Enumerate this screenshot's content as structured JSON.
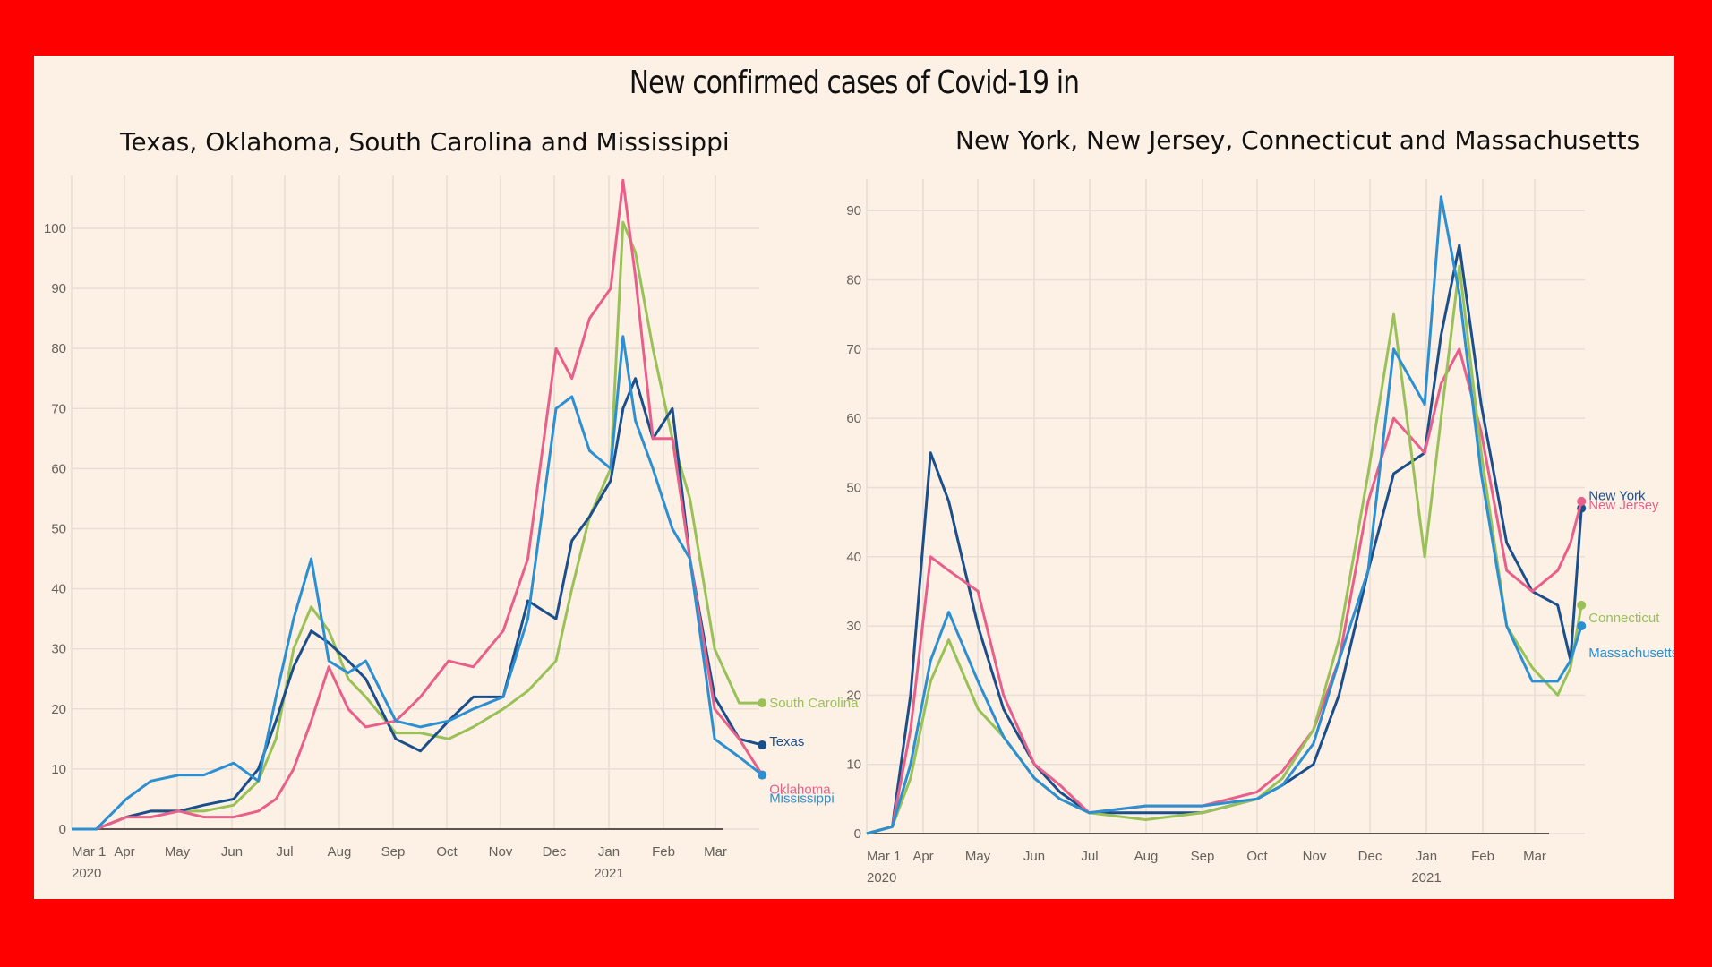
{
  "title": "New confirmed cases of Covid-19 in",
  "colors": {
    "frame": "#ff0000",
    "panel": "#fdf1e6",
    "navy": "#1b4f8c",
    "pink": "#e8608a",
    "green": "#99c157",
    "blue": "#2b8fd1",
    "grid": "#e7ded4",
    "tick": "#66605a"
  },
  "chart_data": [
    {
      "type": "line",
      "title": "Texas, Oklahoma, South Carolina and Mississippi",
      "xlabel": "",
      "ylabel": "",
      "x_tick_labels": [
        "Mar 1\n2020",
        "Apr",
        "May",
        "Jun",
        "Jul",
        "Aug",
        "Sep",
        "Oct",
        "Nov",
        "Dec",
        "Jan\n2021",
        "Feb",
        "Mar"
      ],
      "x_ticks_month_index": [
        0,
        1,
        2,
        3,
        4,
        5,
        6,
        7,
        8,
        9,
        10,
        11,
        12
      ],
      "xlim": [
        "2020-03-01",
        "2021-03-28"
      ],
      "ylim": [
        0,
        107
      ],
      "y_ticks": [
        0,
        10,
        20,
        30,
        40,
        50,
        60,
        70,
        80,
        90,
        100
      ],
      "grid": true,
      "legend": "end-of-line labels, right",
      "series": [
        {
          "name": "South Carolina",
          "color": "#99c157",
          "x": [
            "2020-03-01",
            "2020-03-15",
            "2020-04-01",
            "2020-04-15",
            "2020-05-01",
            "2020-05-15",
            "2020-06-01",
            "2020-06-15",
            "2020-06-25",
            "2020-07-05",
            "2020-07-15",
            "2020-07-25",
            "2020-08-05",
            "2020-08-15",
            "2020-09-01",
            "2020-09-15",
            "2020-10-01",
            "2020-10-15",
            "2020-11-01",
            "2020-11-15",
            "2020-12-01",
            "2020-12-10",
            "2020-12-20",
            "2021-01-01",
            "2021-01-08",
            "2021-01-15",
            "2021-01-25",
            "2021-02-05",
            "2021-02-15",
            "2021-03-01",
            "2021-03-15",
            "2021-03-28"
          ],
          "values": [
            0,
            0,
            2,
            3,
            3,
            3,
            4,
            8,
            15,
            30,
            37,
            33,
            25,
            22,
            16,
            16,
            15,
            17,
            20,
            23,
            28,
            40,
            52,
            60,
            101,
            96,
            80,
            65,
            55,
            30,
            21,
            21
          ]
        },
        {
          "name": "Texas",
          "color": "#1b4f8c",
          "x": [
            "2020-03-01",
            "2020-03-15",
            "2020-04-01",
            "2020-04-15",
            "2020-05-01",
            "2020-05-15",
            "2020-06-01",
            "2020-06-15",
            "2020-06-25",
            "2020-07-05",
            "2020-07-15",
            "2020-07-25",
            "2020-08-05",
            "2020-08-15",
            "2020-09-01",
            "2020-09-15",
            "2020-10-01",
            "2020-10-15",
            "2020-11-01",
            "2020-11-15",
            "2020-12-01",
            "2020-12-10",
            "2020-12-20",
            "2021-01-01",
            "2021-01-08",
            "2021-01-15",
            "2021-01-25",
            "2021-02-05",
            "2021-02-15",
            "2021-03-01",
            "2021-03-15",
            "2021-03-28"
          ],
          "values": [
            0,
            0,
            2,
            3,
            3,
            4,
            5,
            10,
            18,
            27,
            33,
            31,
            28,
            25,
            15,
            13,
            18,
            22,
            22,
            38,
            35,
            48,
            52,
            58,
            70,
            75,
            65,
            70,
            45,
            22,
            15,
            14
          ]
        },
        {
          "name": "Oklahoma",
          "color": "#e8608a",
          "x": [
            "2020-03-01",
            "2020-03-15",
            "2020-04-01",
            "2020-04-15",
            "2020-05-01",
            "2020-05-15",
            "2020-06-01",
            "2020-06-15",
            "2020-06-25",
            "2020-07-05",
            "2020-07-15",
            "2020-07-25",
            "2020-08-05",
            "2020-08-15",
            "2020-09-01",
            "2020-09-15",
            "2020-10-01",
            "2020-10-15",
            "2020-11-01",
            "2020-11-15",
            "2020-12-01",
            "2020-12-10",
            "2020-12-20",
            "2021-01-01",
            "2021-01-08",
            "2021-01-15",
            "2021-01-25",
            "2021-02-05",
            "2021-02-15",
            "2021-03-01",
            "2021-03-15",
            "2021-03-28"
          ],
          "values": [
            0,
            0,
            2,
            2,
            3,
            2,
            2,
            3,
            5,
            10,
            18,
            27,
            20,
            17,
            18,
            22,
            28,
            27,
            33,
            45,
            80,
            75,
            85,
            90,
            108,
            92,
            65,
            65,
            45,
            20,
            15,
            9
          ]
        },
        {
          "name": "Mississippi",
          "color": "#2b8fd1",
          "x": [
            "2020-03-01",
            "2020-03-15",
            "2020-04-01",
            "2020-04-15",
            "2020-05-01",
            "2020-05-15",
            "2020-06-01",
            "2020-06-15",
            "2020-06-25",
            "2020-07-05",
            "2020-07-15",
            "2020-07-25",
            "2020-08-05",
            "2020-08-15",
            "2020-09-01",
            "2020-09-15",
            "2020-10-01",
            "2020-10-15",
            "2020-11-01",
            "2020-11-15",
            "2020-12-01",
            "2020-12-10",
            "2020-12-20",
            "2021-01-01",
            "2021-01-08",
            "2021-01-15",
            "2021-01-25",
            "2021-02-05",
            "2021-02-15",
            "2021-03-01",
            "2021-03-15",
            "2021-03-28"
          ],
          "values": [
            0,
            0,
            5,
            8,
            9,
            9,
            11,
            8,
            22,
            35,
            45,
            28,
            26,
            28,
            18,
            17,
            18,
            20,
            22,
            35,
            70,
            72,
            63,
            60,
            82,
            68,
            60,
            50,
            45,
            15,
            12,
            9
          ]
        }
      ]
    },
    {
      "type": "line",
      "title": "New York, New Jersey, Connecticut and Massachusetts",
      "xlabel": "",
      "ylabel": "",
      "x_tick_labels": [
        "Mar 1\n2020",
        "Apr",
        "May",
        "Jun",
        "Jul",
        "Aug",
        "Sep",
        "Oct",
        "Nov",
        "Dec",
        "Jan\n2021",
        "Feb",
        "Mar"
      ],
      "x_ticks_month_index": [
        0,
        1,
        2,
        3,
        4,
        5,
        6,
        7,
        8,
        9,
        10,
        11,
        12
      ],
      "xlim": [
        "2020-03-01",
        "2021-03-28"
      ],
      "ylim": [
        0,
        93
      ],
      "y_ticks": [
        0,
        10,
        20,
        30,
        40,
        50,
        60,
        70,
        80,
        90
      ],
      "grid": true,
      "legend": "end-of-line labels, right",
      "series": [
        {
          "name": "New York",
          "color": "#1b4f8c",
          "x": [
            "2020-03-01",
            "2020-03-15",
            "2020-03-25",
            "2020-04-05",
            "2020-04-15",
            "2020-05-01",
            "2020-05-15",
            "2020-06-01",
            "2020-06-15",
            "2020-07-01",
            "2020-08-01",
            "2020-09-01",
            "2020-10-01",
            "2020-10-15",
            "2020-11-01",
            "2020-11-15",
            "2020-12-01",
            "2020-12-15",
            "2021-01-01",
            "2021-01-10",
            "2021-01-20",
            "2021-02-01",
            "2021-02-15",
            "2021-03-01",
            "2021-03-15",
            "2021-03-22",
            "2021-03-28"
          ],
          "values": [
            0,
            1,
            20,
            55,
            48,
            30,
            18,
            10,
            6,
            3,
            3,
            3,
            5,
            7,
            10,
            20,
            38,
            52,
            55,
            72,
            85,
            62,
            42,
            35,
            33,
            25,
            47
          ]
        },
        {
          "name": "New Jersey",
          "color": "#e8608a",
          "x": [
            "2020-03-01",
            "2020-03-15",
            "2020-03-25",
            "2020-04-05",
            "2020-04-15",
            "2020-05-01",
            "2020-05-15",
            "2020-06-01",
            "2020-06-15",
            "2020-07-01",
            "2020-08-01",
            "2020-09-01",
            "2020-10-01",
            "2020-10-15",
            "2020-11-01",
            "2020-11-15",
            "2020-12-01",
            "2020-12-15",
            "2021-01-01",
            "2021-01-10",
            "2021-01-20",
            "2021-02-01",
            "2021-02-15",
            "2021-03-01",
            "2021-03-15",
            "2021-03-22",
            "2021-03-28"
          ],
          "values": [
            0,
            1,
            15,
            40,
            38,
            35,
            20,
            10,
            7,
            3,
            4,
            4,
            6,
            9,
            15,
            25,
            48,
            60,
            55,
            65,
            70,
            58,
            38,
            35,
            38,
            42,
            48
          ]
        },
        {
          "name": "Connecticut",
          "color": "#99c157",
          "x": [
            "2020-03-01",
            "2020-03-15",
            "2020-03-25",
            "2020-04-05",
            "2020-04-15",
            "2020-05-01",
            "2020-05-15",
            "2020-06-01",
            "2020-06-15",
            "2020-07-01",
            "2020-08-01",
            "2020-09-01",
            "2020-10-01",
            "2020-10-15",
            "2020-11-01",
            "2020-11-15",
            "2020-12-01",
            "2020-12-15",
            "2021-01-01",
            "2021-01-10",
            "2021-01-20",
            "2021-02-01",
            "2021-02-15",
            "2021-03-01",
            "2021-03-15",
            "2021-03-22",
            "2021-03-28"
          ],
          "values": [
            0,
            1,
            8,
            22,
            28,
            18,
            14,
            8,
            5,
            3,
            2,
            3,
            5,
            8,
            15,
            28,
            52,
            75,
            40,
            60,
            82,
            55,
            30,
            24,
            20,
            24,
            33
          ]
        },
        {
          "name": "Massachusetts",
          "color": "#2b8fd1",
          "x": [
            "2020-03-01",
            "2020-03-15",
            "2020-03-25",
            "2020-04-05",
            "2020-04-15",
            "2020-05-01",
            "2020-05-15",
            "2020-06-01",
            "2020-06-15",
            "2020-07-01",
            "2020-08-01",
            "2020-09-01",
            "2020-10-01",
            "2020-10-15",
            "2020-11-01",
            "2020-11-15",
            "2020-12-01",
            "2020-12-15",
            "2021-01-01",
            "2021-01-10",
            "2021-01-20",
            "2021-02-01",
            "2021-02-15",
            "2021-03-01",
            "2021-03-15",
            "2021-03-22",
            "2021-03-28"
          ],
          "values": [
            0,
            1,
            10,
            25,
            32,
            22,
            14,
            8,
            5,
            3,
            4,
            4,
            5,
            7,
            13,
            25,
            38,
            70,
            62,
            92,
            78,
            52,
            30,
            22,
            22,
            25,
            30
          ]
        }
      ]
    }
  ]
}
